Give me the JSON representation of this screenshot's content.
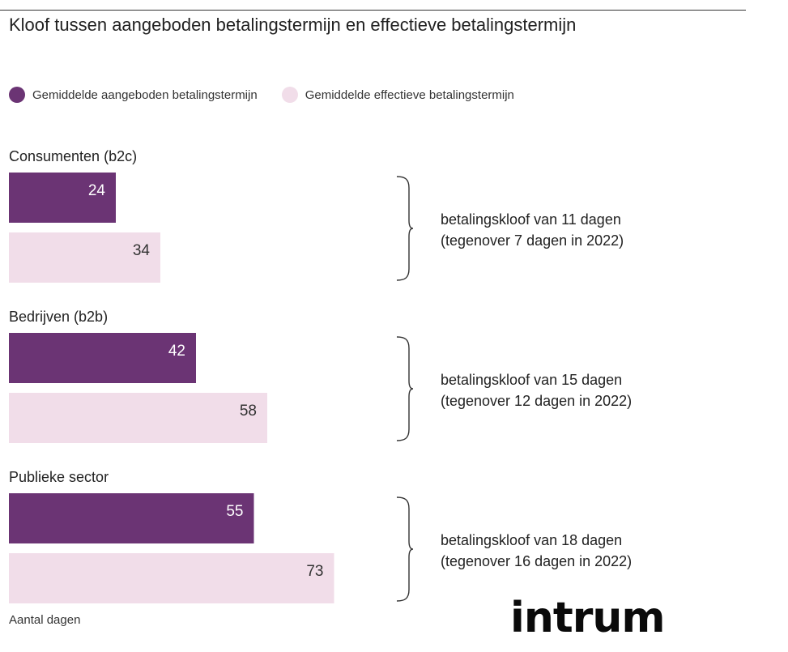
{
  "title": "Kloof tussen aangeboden betalingstermijn en effectieve betalingstermijn",
  "axis_note": "Aantal dagen",
  "logo_text": "intrum",
  "colors": {
    "offered": "#6b3474",
    "effective": "#f1dde9",
    "offered_label": "#ffffff",
    "effective_label": "#333333"
  },
  "legend": [
    {
      "label": "Gemiddelde aangeboden betalingstermijn",
      "color": "#6b3474"
    },
    {
      "label": "Gemiddelde effectieve betalingstermijn",
      "color": "#f1dde9"
    }
  ],
  "chart_data": {
    "type": "bar",
    "orientation": "horizontal",
    "categories": [
      "Consumenten (b2c)",
      "Bedrijven (b2b)",
      "Publieke sector"
    ],
    "series": [
      {
        "name": "Gemiddelde aangeboden betalingstermijn",
        "values": [
          24,
          42,
          55
        ]
      },
      {
        "name": "Gemiddelde effectieve betalingstermijn",
        "values": [
          34,
          58,
          73
        ]
      }
    ],
    "annotations": [
      {
        "line1": "betalingskloof van 11 dagen",
        "line2": "(tegenover 7 dagen in 2022)"
      },
      {
        "line1": "betalingskloof van 15 dagen",
        "line2": "(tegenover 12 dagen in 2022)"
      },
      {
        "line1": "betalingskloof van 18 dagen",
        "line2": "(tegenover 16 dagen in 2022)"
      }
    ],
    "xlabel": "Aantal dagen",
    "grid": false,
    "legend_position": "top-left"
  }
}
